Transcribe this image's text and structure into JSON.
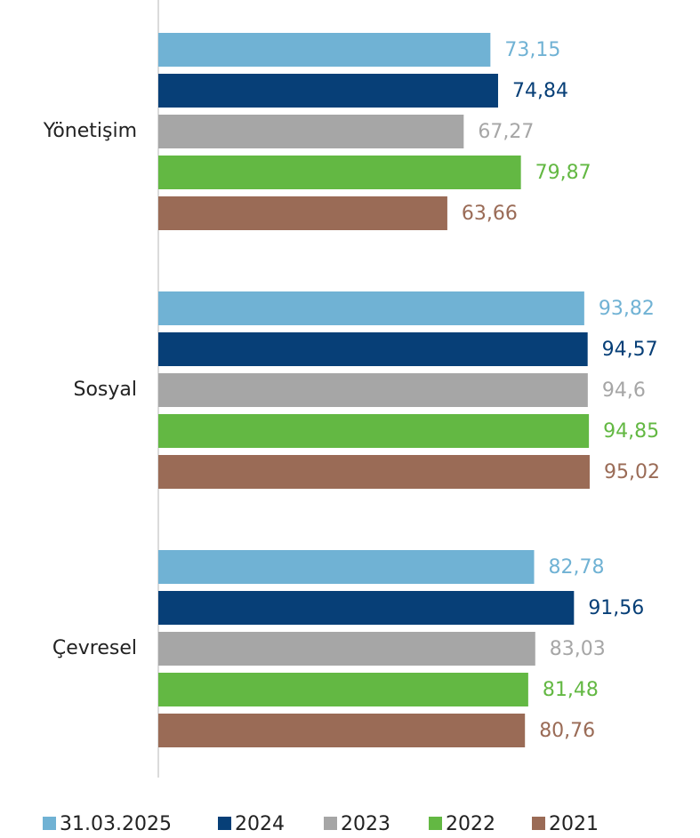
{
  "chart_data": {
    "type": "barh",
    "categories": [
      "Yönetişim",
      "Sosyal",
      "Çevresel"
    ],
    "xlim": [
      0,
      100
    ],
    "series": [
      {
        "name": "31.03.2025",
        "color": "#70b2d4",
        "values": [
          73.15,
          93.82,
          82.78
        ],
        "value_labels": [
          "73,15",
          "93,82",
          "82,78"
        ]
      },
      {
        "name": "2024",
        "color": "#073f77",
        "values": [
          74.84,
          94.57,
          91.56
        ],
        "value_labels": [
          "74,84",
          "94,57",
          "91,56"
        ]
      },
      {
        "name": "2023",
        "color": "#a6a6a6",
        "values": [
          67.27,
          94.6,
          83.03
        ],
        "value_labels": [
          "67,27",
          "94,6",
          "83,03"
        ]
      },
      {
        "name": "2022",
        "color": "#63b843",
        "values": [
          79.87,
          94.85,
          81.48
        ],
        "value_labels": [
          "79,87",
          "94,85",
          "81,48"
        ]
      },
      {
        "name": "2021",
        "color": "#9a6b56",
        "values": [
          63.66,
          95.02,
          80.76
        ],
        "value_labels": [
          "63,66",
          "95,02",
          "80,76"
        ]
      }
    ]
  }
}
